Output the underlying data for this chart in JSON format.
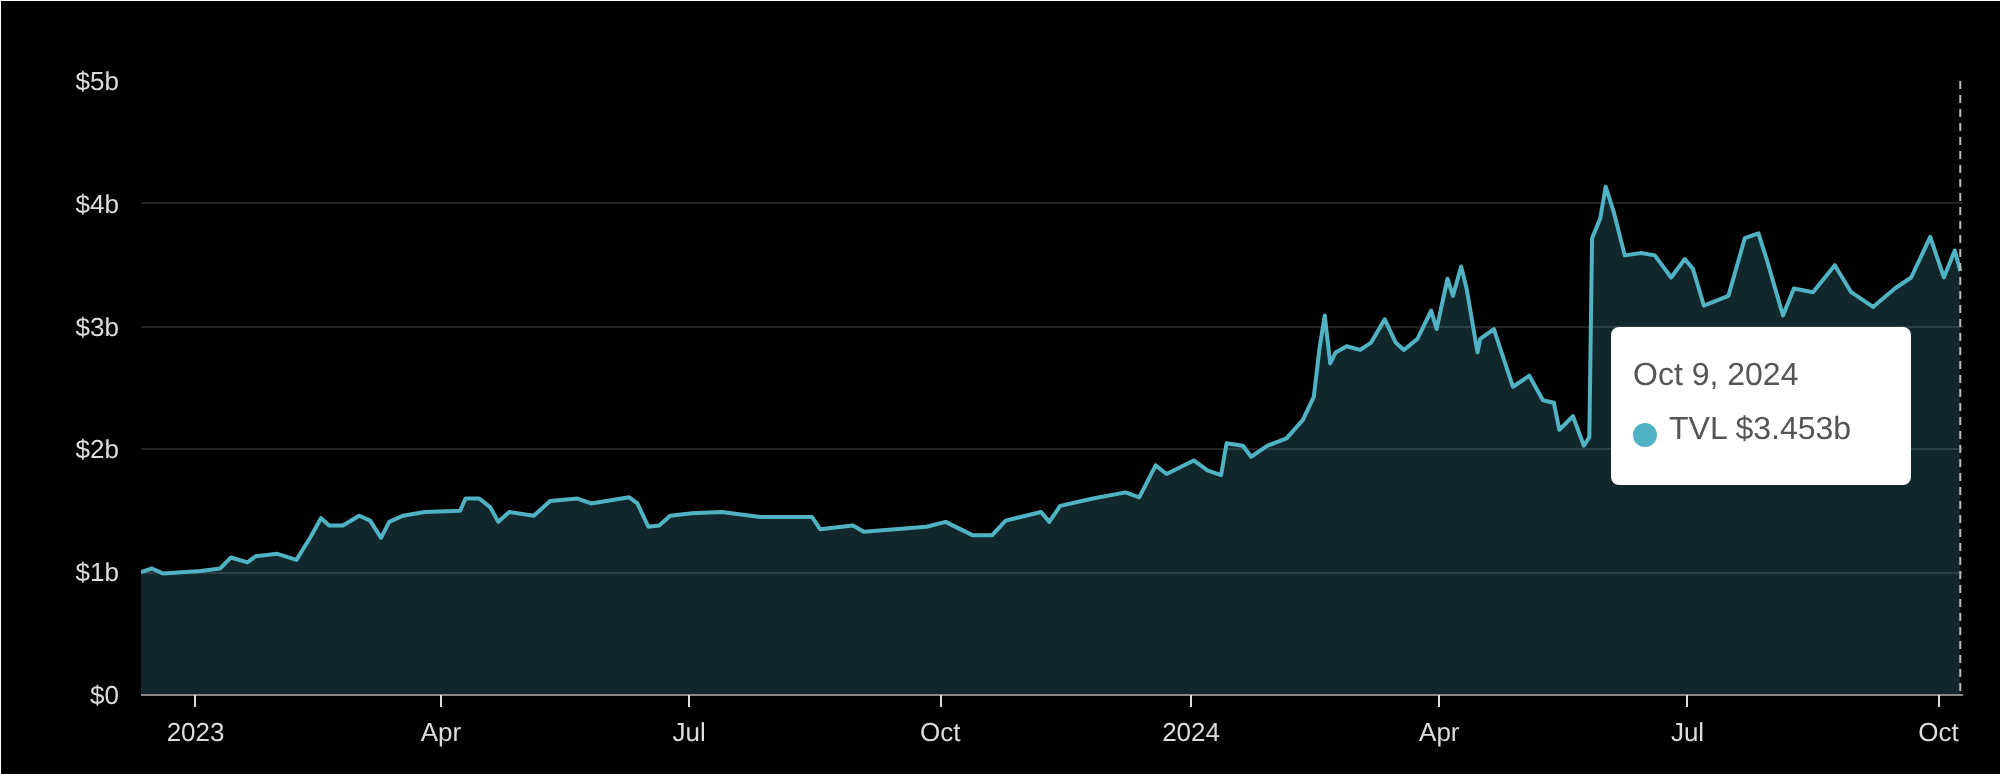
{
  "chart_data": {
    "type": "area",
    "xlim": [
      "2022-12-12",
      "2024-10-10"
    ],
    "ylim": [
      0,
      5
    ],
    "yticks": [
      {
        "value": 0,
        "label": "$0"
      },
      {
        "value": 1,
        "label": "$1b"
      },
      {
        "value": 2,
        "label": "$2b"
      },
      {
        "value": 3,
        "label": "$3b"
      },
      {
        "value": 4,
        "label": "$4b"
      },
      {
        "value": 5,
        "label": "$5b"
      }
    ],
    "xticks": [
      {
        "value": "2023-01-01",
        "label": "2023"
      },
      {
        "value": "2023-04-01",
        "label": "Apr"
      },
      {
        "value": "2023-07-01",
        "label": "Jul"
      },
      {
        "value": "2023-10-01",
        "label": "Oct"
      },
      {
        "value": "2024-01-01",
        "label": "2024"
      },
      {
        "value": "2024-04-01",
        "label": "Apr"
      },
      {
        "value": "2024-07-01",
        "label": "Jul"
      },
      {
        "value": "2024-10-01",
        "label": "Oct"
      }
    ],
    "grid": "y",
    "ref_lines": [
      {
        "axis": "x",
        "value": "2024-10-09",
        "line_style": "dashed",
        "color": "#bbbbbb"
      }
    ],
    "annotations": [
      "Oct 9, 2024"
    ],
    "series": [
      {
        "name": "TVL",
        "color": "#4fb3c4",
        "x": [
          "2022-12-12",
          "2022-12-16",
          "2022-12-20",
          "2023-01-03",
          "2023-01-10",
          "2023-01-14",
          "2023-01-20",
          "2023-01-23",
          "2023-01-31",
          "2023-02-07",
          "2023-02-12",
          "2023-02-16",
          "2023-02-19",
          "2023-02-24",
          "2023-03-02",
          "2023-03-06",
          "2023-03-10",
          "2023-03-13",
          "2023-03-18",
          "2023-03-26",
          "2023-04-08",
          "2023-04-10",
          "2023-04-15",
          "2023-04-19",
          "2023-04-22",
          "2023-04-26",
          "2023-05-05",
          "2023-05-11",
          "2023-05-21",
          "2023-05-26",
          "2023-06-09",
          "2023-06-12",
          "2023-06-16",
          "2023-06-20",
          "2023-06-24",
          "2023-07-02",
          "2023-07-13",
          "2023-07-27",
          "2023-08-15",
          "2023-08-18",
          "2023-08-30",
          "2023-09-03",
          "2023-09-26",
          "2023-10-03",
          "2023-10-13",
          "2023-10-20",
          "2023-10-25",
          "2023-11-07",
          "2023-11-10",
          "2023-11-14",
          "2023-11-26",
          "2023-12-08",
          "2023-12-13",
          "2023-12-19",
          "2023-12-23",
          "2024-01-02",
          "2024-01-07",
          "2024-01-12",
          "2024-01-14",
          "2024-01-20",
          "2024-01-23",
          "2024-01-29",
          "2024-02-05",
          "2024-02-11",
          "2024-02-15",
          "2024-02-17",
          "2024-02-19",
          "2024-02-21",
          "2024-02-23",
          "2024-02-27",
          "2024-03-03",
          "2024-03-07",
          "2024-03-12",
          "2024-03-16",
          "2024-03-19",
          "2024-03-24",
          "2024-03-29",
          "2024-03-31",
          "2024-04-04",
          "2024-04-06",
          "2024-04-09",
          "2024-04-11",
          "2024-04-15",
          "2024-04-16",
          "2024-04-21",
          "2024-04-28",
          "2024-05-04",
          "2024-05-09",
          "2024-05-13",
          "2024-05-15",
          "2024-05-20",
          "2024-05-24",
          "2024-05-26",
          "2024-05-27",
          "2024-05-30",
          "2024-06-01",
          "2024-06-04",
          "2024-06-08",
          "2024-06-14",
          "2024-06-19",
          "2024-06-25",
          "2024-06-30",
          "2024-07-03",
          "2024-07-07",
          "2024-07-16",
          "2024-07-22",
          "2024-07-27",
          "2024-07-30",
          "2024-08-05",
          "2024-08-09",
          "2024-08-16",
          "2024-08-24",
          "2024-08-30",
          "2024-09-07",
          "2024-09-15",
          "2024-09-21",
          "2024-09-28",
          "2024-10-03",
          "2024-10-07",
          "2024-10-09"
        ],
        "values": [
          1.0,
          1.03,
          0.99,
          1.01,
          1.03,
          1.12,
          1.08,
          1.13,
          1.15,
          1.1,
          1.28,
          1.44,
          1.38,
          1.38,
          1.46,
          1.42,
          1.28,
          1.41,
          1.46,
          1.49,
          1.5,
          1.6,
          1.6,
          1.53,
          1.41,
          1.49,
          1.46,
          1.58,
          1.6,
          1.56,
          1.61,
          1.56,
          1.37,
          1.38,
          1.46,
          1.48,
          1.49,
          1.45,
          1.45,
          1.35,
          1.38,
          1.33,
          1.37,
          1.41,
          1.3,
          1.3,
          1.42,
          1.49,
          1.41,
          1.54,
          1.6,
          1.65,
          1.61,
          1.87,
          1.8,
          1.91,
          1.83,
          1.79,
          2.05,
          2.03,
          1.94,
          2.03,
          2.09,
          2.24,
          2.43,
          2.81,
          3.09,
          2.7,
          2.79,
          2.84,
          2.81,
          2.87,
          3.06,
          2.87,
          2.81,
          2.9,
          3.13,
          2.98,
          3.39,
          3.25,
          3.49,
          3.31,
          2.79,
          2.9,
          2.98,
          2.51,
          2.6,
          2.4,
          2.38,
          2.16,
          2.27,
          2.03,
          2.1,
          3.72,
          3.88,
          4.14,
          3.93,
          3.58,
          3.6,
          3.58,
          3.4,
          3.55,
          3.47,
          3.17,
          3.25,
          3.72,
          3.76,
          3.55,
          3.09,
          3.31,
          3.28,
          3.5,
          3.28,
          3.16,
          3.31,
          3.4,
          3.73,
          3.4,
          3.62,
          3.453
        ],
        "value_labels": [
          null,
          null,
          null,
          null,
          null,
          null,
          null,
          null,
          null,
          null,
          null,
          null,
          null,
          null,
          null,
          null,
          null,
          null,
          null,
          null,
          null,
          null,
          null,
          null,
          null,
          null,
          null,
          null,
          null,
          null,
          null,
          null,
          null,
          null,
          null,
          null,
          null,
          null,
          null,
          null,
          null,
          null,
          null,
          null,
          null,
          null,
          null,
          null,
          null,
          null,
          null,
          null,
          null,
          null,
          null,
          null,
          null,
          null,
          null,
          null,
          null,
          null,
          null,
          null,
          null,
          null,
          null,
          null,
          null,
          null,
          null,
          null,
          null,
          null,
          null,
          null,
          null,
          null,
          null,
          null,
          null,
          null,
          null,
          null,
          null,
          null,
          null,
          null,
          null,
          null,
          null,
          null,
          null,
          null,
          null,
          null,
          null,
          null,
          null,
          null,
          null,
          null,
          null,
          null,
          null,
          null,
          null,
          null,
          null,
          null,
          null,
          null,
          null,
          null,
          null,
          null,
          null,
          null,
          null,
          "$3.453b"
        ]
      }
    ]
  }
}
